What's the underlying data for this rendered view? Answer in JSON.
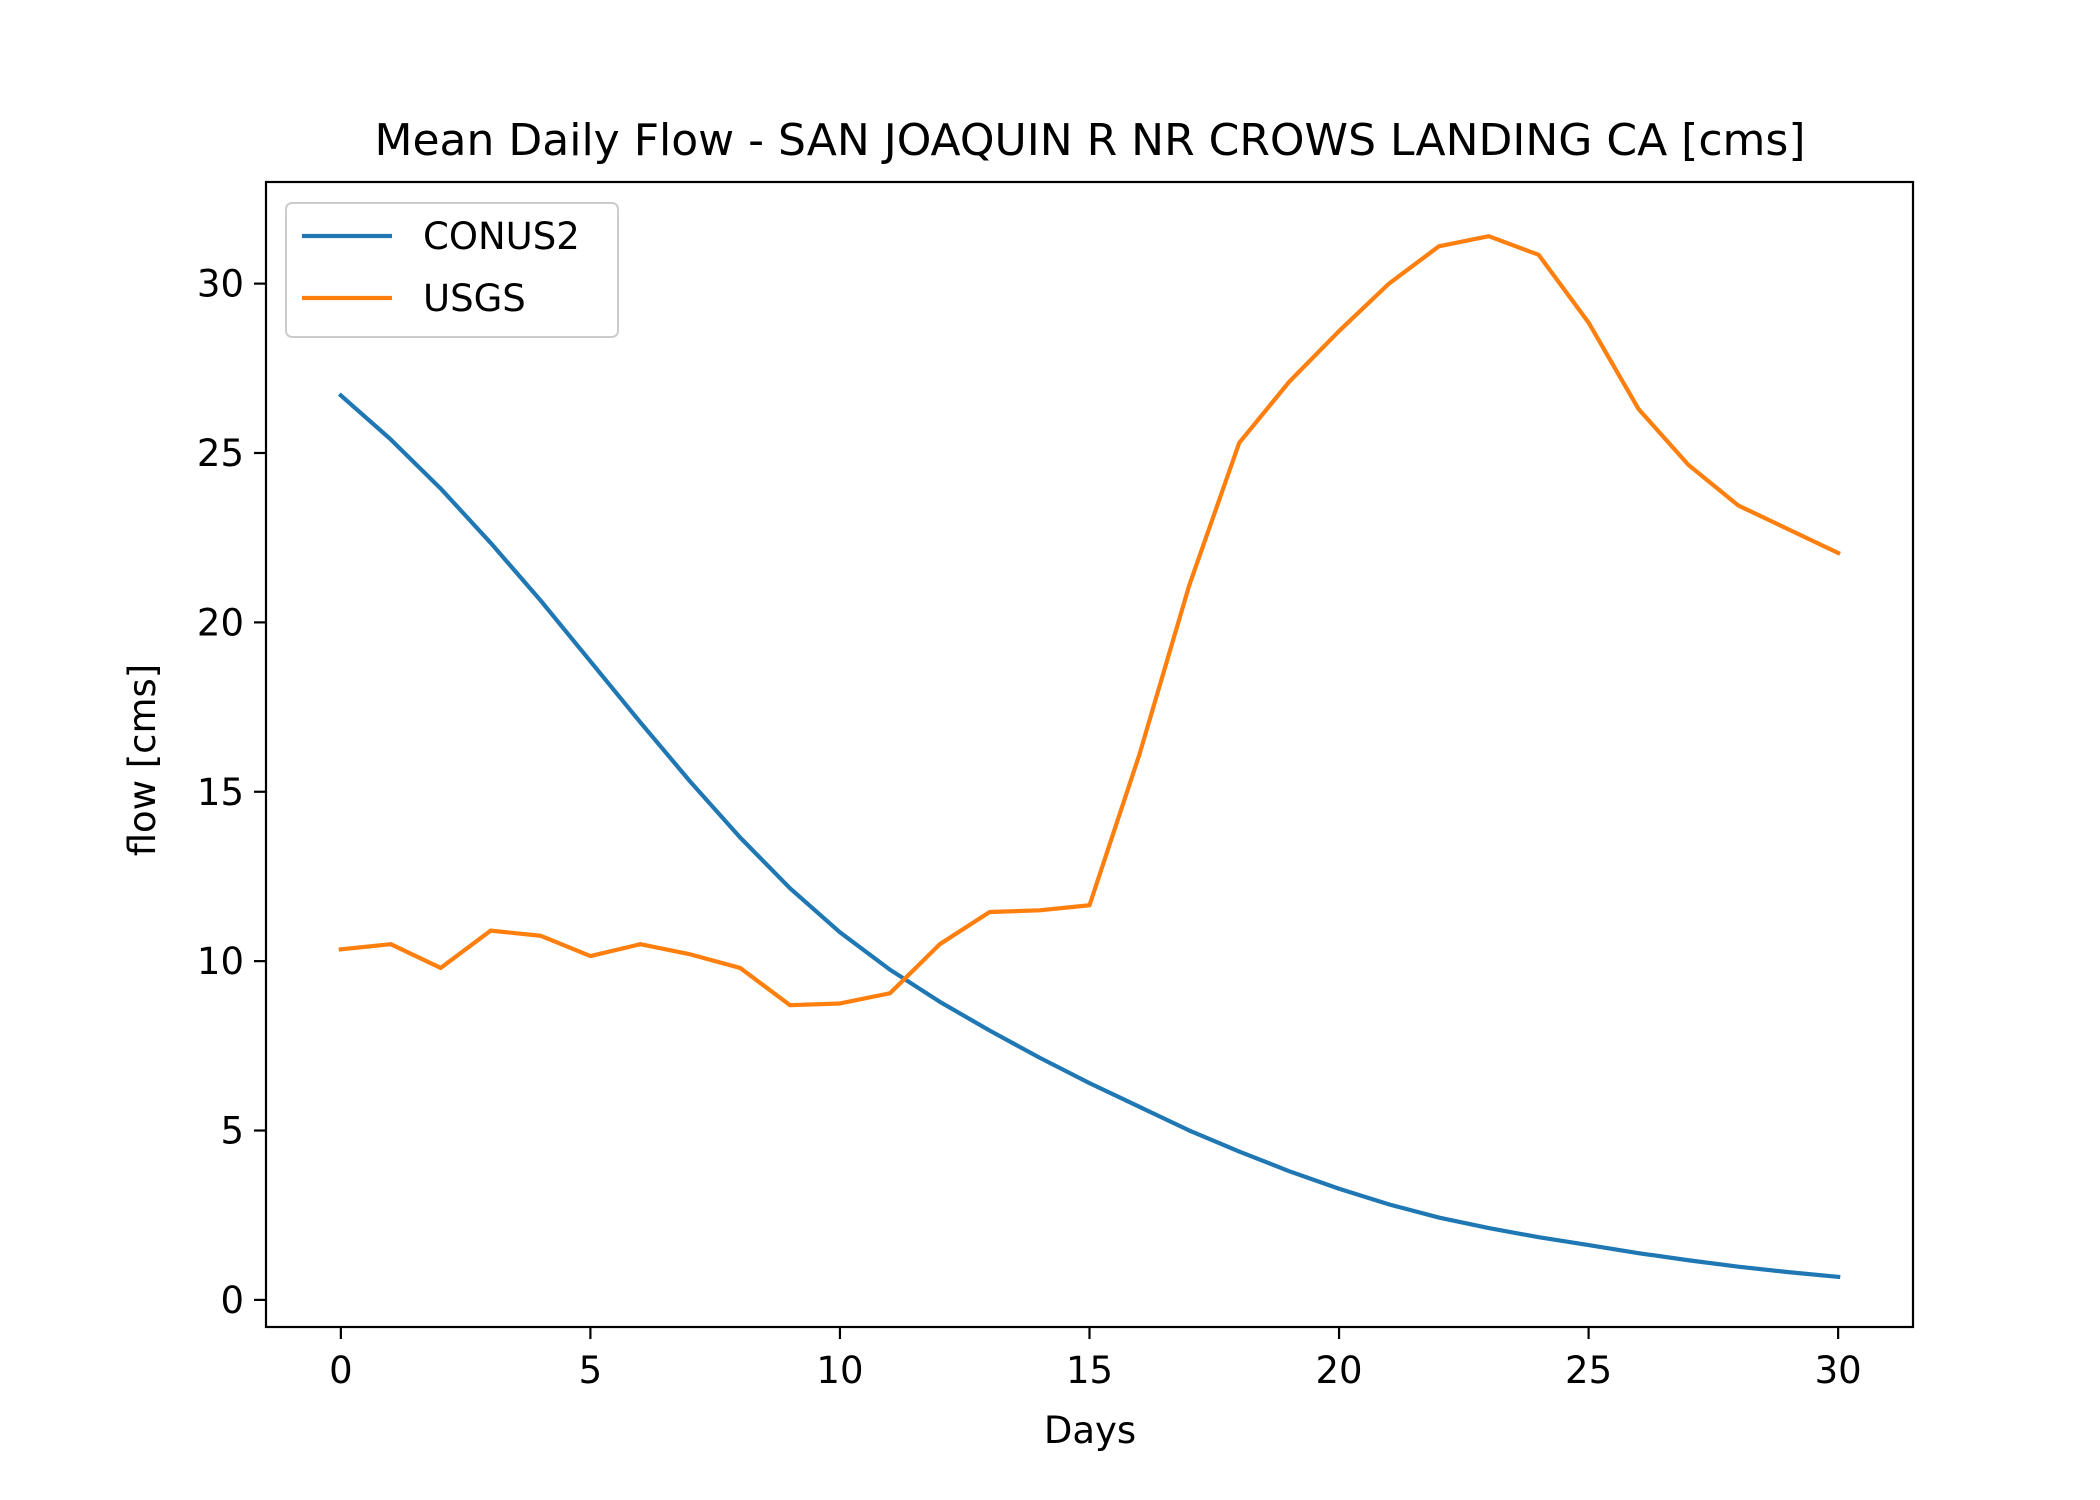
{
  "chart_data": {
    "type": "line",
    "title": "Mean Daily Flow - SAN JOAQUIN R NR CROWS LANDING CA [cms]",
    "xlabel": "Days",
    "ylabel": "flow [cms]",
    "xlim": [
      -1.5,
      31.5
    ],
    "ylim": [
      -0.8,
      33.0
    ],
    "xticks": [
      0,
      5,
      10,
      15,
      20,
      25,
      30
    ],
    "yticks": [
      0,
      5,
      10,
      15,
      20,
      25,
      30
    ],
    "grid": false,
    "legend": "top-left",
    "x": [
      0,
      1,
      2,
      3,
      4,
      5,
      6,
      7,
      8,
      9,
      10,
      11,
      12,
      13,
      14,
      15,
      16,
      17,
      18,
      19,
      20,
      21,
      22,
      23,
      24,
      25,
      26,
      27,
      28,
      29,
      30
    ],
    "series": [
      {
        "name": "CONUS2",
        "color": "#1f77b4",
        "values": [
          26.7,
          25.4,
          23.95,
          22.35,
          20.65,
          18.85,
          17.05,
          15.3,
          13.65,
          12.15,
          10.85,
          9.75,
          8.8,
          7.95,
          7.15,
          6.4,
          5.7,
          5.0,
          4.38,
          3.8,
          3.28,
          2.82,
          2.43,
          2.12,
          1.85,
          1.62,
          1.38,
          1.17,
          0.98,
          0.82,
          0.68
        ]
      },
      {
        "name": "USGS",
        "color": "#ff7f0e",
        "values": [
          10.35,
          10.5,
          9.8,
          10.9,
          10.75,
          10.15,
          10.5,
          10.2,
          9.8,
          8.7,
          8.75,
          9.05,
          10.5,
          11.45,
          11.5,
          11.65,
          16.1,
          21.1,
          25.3,
          27.1,
          28.6,
          30.0,
          31.1,
          31.4,
          30.85,
          28.85,
          26.3,
          24.65,
          23.45,
          22.75,
          22.05
        ]
      }
    ]
  }
}
